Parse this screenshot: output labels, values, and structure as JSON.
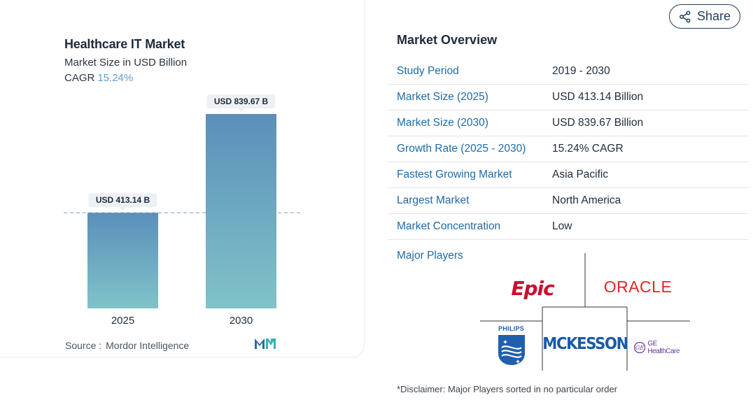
{
  "chart": {
    "title": "Healthcare IT Market",
    "subtitle": "Market Size in USD Billion",
    "cagr_label": "CAGR",
    "cagr_value": "15.24%",
    "source_prefix": "Source :",
    "source_name": "Mordor Intelligence"
  },
  "chart_data": {
    "type": "bar",
    "categories": [
      "2025",
      "2030"
    ],
    "values": [
      413.14,
      839.67
    ],
    "data_labels": [
      "USD 413.14 B",
      "USD 839.67 B"
    ],
    "title": "Healthcare IT Market",
    "subtitle": "Market Size in USD Billion",
    "ylim": [
      0,
      839.67
    ],
    "grid": false,
    "reference_line": "dashed line at 2025 value"
  },
  "share": {
    "label": "Share",
    "icon": "share-icon"
  },
  "overview": {
    "title": "Market Overview",
    "rows": [
      {
        "label": "Study Period",
        "value": "2019 - 2030"
      },
      {
        "label": "Market Size (2025)",
        "value": "USD 413.14 Billion"
      },
      {
        "label": "Market Size (2030)",
        "value": "USD 839.67 Billion"
      },
      {
        "label": "Growth Rate (2025 - 2030)",
        "value": "15.24% CAGR"
      },
      {
        "label": "Fastest Growing Market",
        "value": "Asia Pacific"
      },
      {
        "label": "Largest Market",
        "value": "North America"
      },
      {
        "label": "Market Concentration",
        "value": "Low"
      }
    ]
  },
  "players": {
    "label": "Major Players",
    "logos": [
      "Epic",
      "ORACLE",
      "PHILIPS",
      "MCKESSON",
      "GE HealthCare"
    ]
  },
  "disclaimer": "*Disclaimer: Major Players sorted in no particular order",
  "colors": {
    "bar_top": "#5b8fba",
    "bar_bottom": "#80c3c9",
    "link": "#1e6aa8",
    "epic_red": "#c8102e",
    "oracle_red": "#e42525",
    "mckesson_blue": "#1a5aa8",
    "philips_blue": "#1f5fae",
    "ge_purple": "#6a3a9a"
  }
}
